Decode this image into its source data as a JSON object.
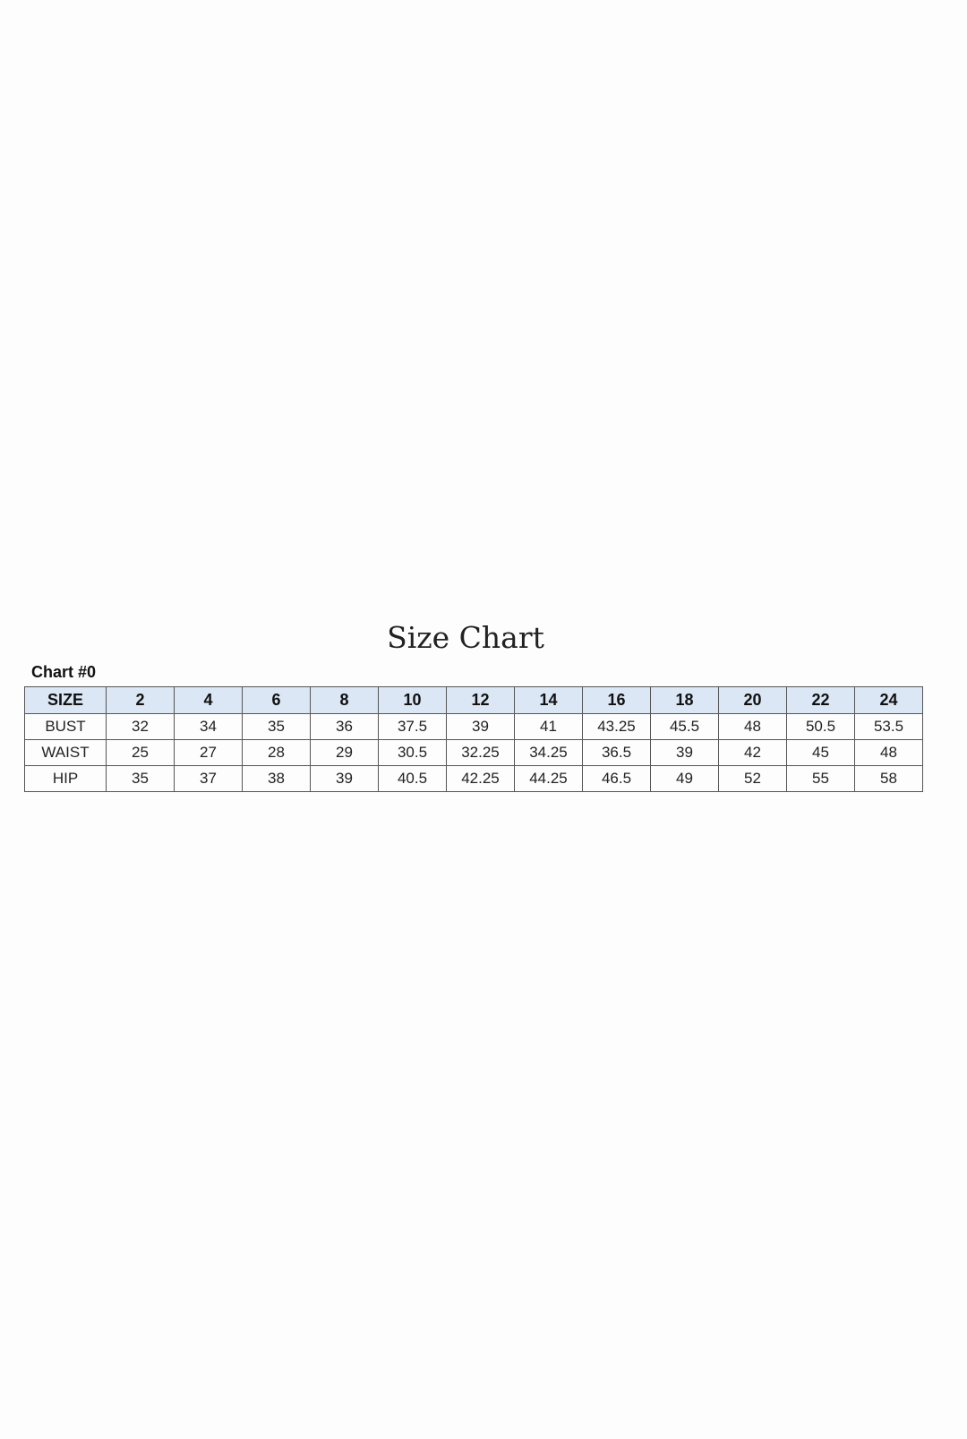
{
  "title": "Size Chart",
  "subtitle": "Chart #0",
  "header_color": "#dbe7f4",
  "table": {
    "header": [
      "SIZE",
      "2",
      "4",
      "6",
      "8",
      "10",
      "12",
      "14",
      "16",
      "18",
      "20",
      "22",
      "24"
    ],
    "rows": [
      [
        "BUST",
        "32",
        "34",
        "35",
        "36",
        "37.5",
        "39",
        "41",
        "43.25",
        "45.5",
        "48",
        "50.5",
        "53.5"
      ],
      [
        "WAIST",
        "25",
        "27",
        "28",
        "29",
        "30.5",
        "32.25",
        "34.25",
        "36.5",
        "39",
        "42",
        "45",
        "48"
      ],
      [
        "HIP",
        "35",
        "37",
        "38",
        "39",
        "40.5",
        "42.25",
        "44.25",
        "46.5",
        "49",
        "52",
        "55",
        "58"
      ]
    ]
  }
}
